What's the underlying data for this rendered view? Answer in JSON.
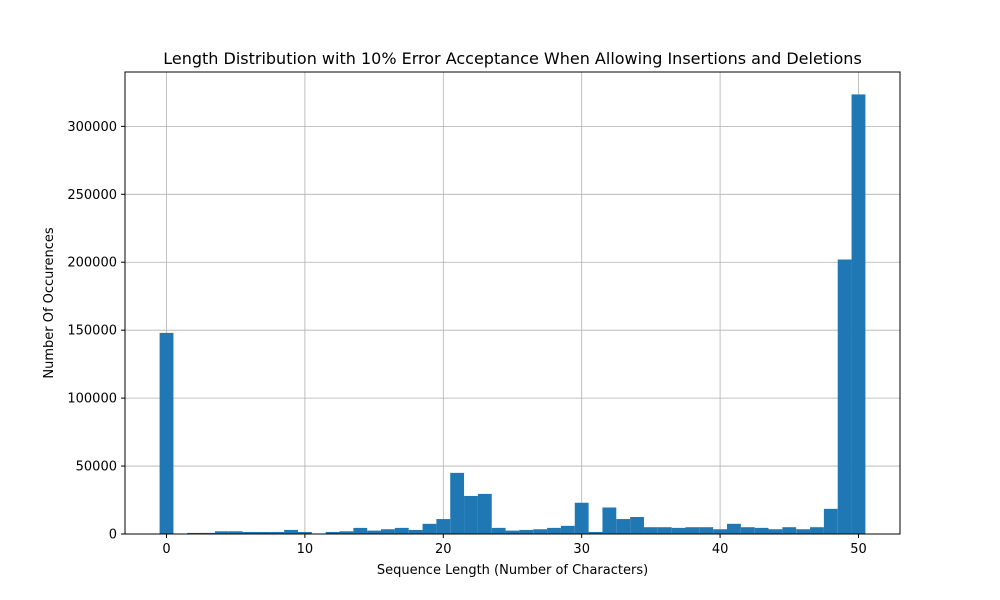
{
  "chart_data": {
    "type": "bar",
    "title": "Length Distribution with 10% Error Acceptance When Allowing Insertions and Deletions",
    "xlabel": "Sequence Length (Number of Characters)",
    "ylabel": "Number Of Occurences",
    "xlim": [
      -3,
      53
    ],
    "ylim": [
      0,
      340000
    ],
    "xticks": [
      0,
      10,
      20,
      30,
      40,
      50
    ],
    "yticks": [
      0,
      50000,
      100000,
      150000,
      200000,
      250000,
      300000
    ],
    "grid": true,
    "bar_color": "#1f77b4",
    "x": [
      0,
      1,
      2,
      3,
      4,
      5,
      6,
      7,
      8,
      9,
      10,
      11,
      12,
      13,
      14,
      15,
      16,
      17,
      18,
      19,
      20,
      21,
      22,
      23,
      24,
      25,
      26,
      27,
      28,
      29,
      30,
      31,
      32,
      33,
      34,
      35,
      36,
      37,
      38,
      39,
      40,
      41,
      42,
      43,
      44,
      45,
      46,
      47,
      48,
      49,
      50
    ],
    "values": [
      148000,
      0,
      800,
      800,
      2000,
      2000,
      1500,
      1500,
      1500,
      3000,
      1500,
      300,
      1500,
      2000,
      4500,
      2500,
      3500,
      4500,
      3000,
      7500,
      11000,
      45000,
      28000,
      29500,
      4500,
      2500,
      3000,
      3500,
      4500,
      6000,
      23000,
      1500,
      19500,
      11000,
      12500,
      5000,
      5000,
      4500,
      5000,
      5000,
      3500,
      7500,
      5000,
      4500,
      3500,
      5000,
      3500,
      5000,
      18500,
      202000,
      323500
    ]
  }
}
